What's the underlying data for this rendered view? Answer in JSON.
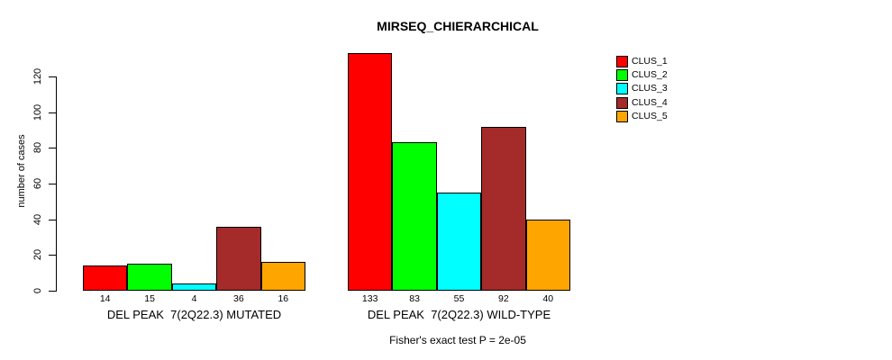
{
  "chart_data": {
    "type": "bar",
    "title": "MIRSEQ_CHIERARCHICAL",
    "ylabel": "number of cases",
    "xlabel": "",
    "ylim": [
      0,
      120
    ],
    "yticks": [
      0,
      20,
      40,
      60,
      80,
      100,
      120
    ],
    "grid": false,
    "legend_position": "top-right",
    "bar_border_color": "#000000",
    "categories": [
      "DEL PEAK  7(2Q22.3) MUTATED",
      "DEL PEAK  7(2Q22.3) WILD-TYPE"
    ],
    "series": [
      {
        "name": "CLUS_1",
        "color": "#FF0000",
        "values": [
          14,
          133
        ]
      },
      {
        "name": "CLUS_2",
        "color": "#00FF00",
        "values": [
          15,
          83
        ]
      },
      {
        "name": "CLUS_3",
        "color": "#00FFFF",
        "values": [
          4,
          55
        ]
      },
      {
        "name": "CLUS_4",
        "color": "#A52A2A",
        "values": [
          36,
          92
        ]
      },
      {
        "name": "CLUS_5",
        "color": "#FFA500",
        "values": [
          16,
          40
        ]
      }
    ],
    "bar_value_labels": [
      [
        14,
        15,
        4,
        36,
        16
      ],
      [
        133,
        83,
        55,
        92,
        40
      ]
    ],
    "annotation": "Fisher's exact test P = 2e-05"
  }
}
